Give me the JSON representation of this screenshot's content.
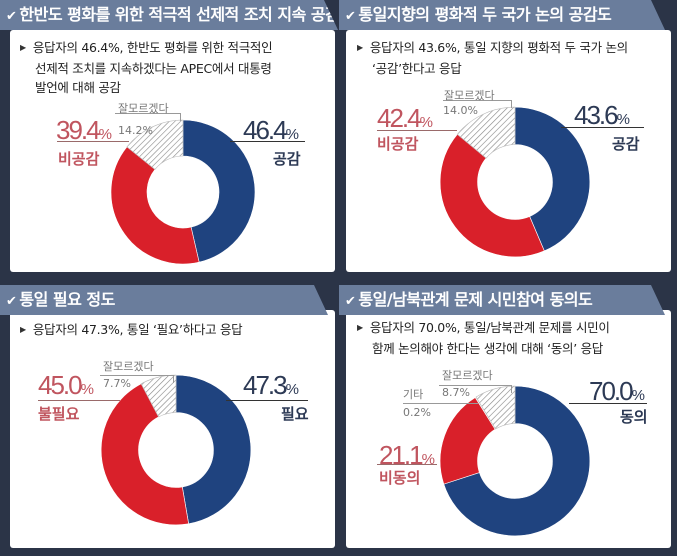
{
  "panels": [
    {
      "title": "한반도 평화를 위한 적극적 선제적 조치 지속 공감도",
      "description_lines": [
        "응답자의 46.4%, 한반도 평화를 위한 적극적인",
        "선제적 조치를 지속하겠다는 APEC에서 대통령",
        "발언에 대해 공감"
      ],
      "positive": {
        "value": "46.4",
        "label": "공감"
      },
      "negative": {
        "value": "39.4",
        "label": "비공감"
      },
      "unknown": {
        "label": "잘모르겠다",
        "value": "14.2%"
      }
    },
    {
      "title": "통일지향의 평화적 두 국가 논의 공감도",
      "description_lines": [
        "응답자의 43.6%, 통일 지향의 평화적 두 국가 논의",
        "‘공감’한다고 응답"
      ],
      "positive": {
        "value": "43.6",
        "label": "공감"
      },
      "negative": {
        "value": "42.4",
        "label": "비공감"
      },
      "unknown": {
        "label": "잘모르겠다",
        "value": "14.0%"
      }
    },
    {
      "title": "통일 필요 정도",
      "description_lines": [
        "응답자의 47.3%, 통일 ‘필요’하다고 응답"
      ],
      "positive": {
        "value": "47.3",
        "label": "필요"
      },
      "negative": {
        "value": "45.0",
        "label": "불필요"
      },
      "unknown": {
        "label": "잘모르겠다",
        "value": "7.7%"
      }
    },
    {
      "title": "통일/남북관계 문제 시민참여 동의도",
      "description_lines": [
        "응답자의 70.0%, 통일/남북관계 문제를 시민이",
        "함께 논의해야 한다는 생각에 대해 ‘동의’ 응답"
      ],
      "positive": {
        "value": "70.0",
        "label": "동의"
      },
      "negative": {
        "value": "21.1",
        "label": "비동의"
      },
      "unknown": {
        "label": "잘모르겠다",
        "value": "8.7%"
      },
      "other": {
        "label": "기타",
        "value": "0.2%"
      }
    }
  ],
  "pct_sign": "%",
  "colors": {
    "positive": "#1f437f",
    "negative": "#d9202a",
    "unknown_hatch": "#888888",
    "header": "#6a7d9c",
    "background": "#2b3447"
  },
  "chart_data": [
    {
      "type": "pie",
      "title": "한반도 평화를 위한 적극적 선제적 조치 지속 공감도",
      "categories": [
        "공감",
        "비공감",
        "잘모르겠다"
      ],
      "values": [
        46.4,
        39.4,
        14.2
      ]
    },
    {
      "type": "pie",
      "title": "통일지향의 평화적 두 국가 논의 공감도",
      "categories": [
        "공감",
        "비공감",
        "잘모르겠다"
      ],
      "values": [
        43.6,
        42.4,
        14.0
      ]
    },
    {
      "type": "pie",
      "title": "통일 필요 정도",
      "categories": [
        "필요",
        "불필요",
        "잘모르겠다"
      ],
      "values": [
        47.3,
        45.0,
        7.7
      ]
    },
    {
      "type": "pie",
      "title": "통일/남북관계 문제 시민참여 동의도",
      "categories": [
        "동의",
        "비동의",
        "기타",
        "잘모르겠다"
      ],
      "values": [
        70.0,
        21.1,
        0.2,
        8.7
      ]
    }
  ]
}
